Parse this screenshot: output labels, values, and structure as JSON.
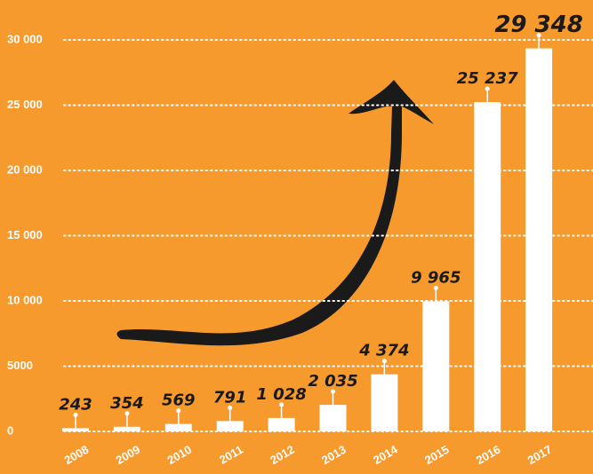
{
  "chart_data": {
    "type": "bar",
    "categories": [
      "2008",
      "2009",
      "2010",
      "2011",
      "2012",
      "2013",
      "2014",
      "2015",
      "2016",
      "2017"
    ],
    "values": [
      243,
      354,
      569,
      791,
      1028,
      2035,
      4374,
      9965,
      25237,
      29348
    ],
    "value_labels": [
      "243",
      "354",
      "569",
      "791",
      "1 028",
      "2 035",
      "4 374",
      "9 965",
      "25 237",
      "29 348"
    ],
    "color": "#ffffff",
    "ylim": [
      0,
      30000
    ],
    "yticks": [
      0,
      5000,
      {
        "value": 10000,
        "label": "10 000"
      },
      {
        "value": 15000,
        "label": "15 000"
      },
      {
        "value": 20000,
        "label": "20 000"
      },
      {
        "value": 25000,
        "label": "25 000"
      },
      {
        "value": 30000,
        "label": "30 000"
      }
    ],
    "grid": true
  }
}
